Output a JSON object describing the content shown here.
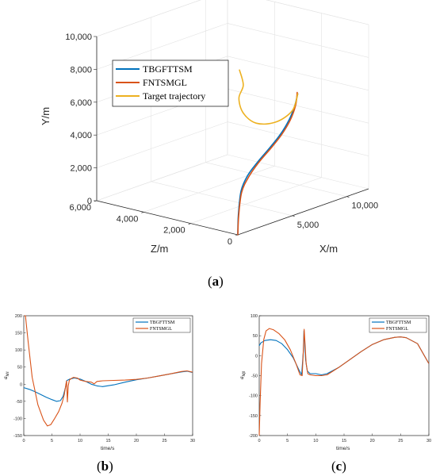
{
  "panels": {
    "a": {
      "label_open": "(",
      "letter": "a",
      "label_close": ")"
    },
    "b": {
      "label_open": "(",
      "letter": "b",
      "label_close": ")"
    },
    "c": {
      "label_open": "(",
      "letter": "c",
      "label_close": ")"
    }
  },
  "colors": {
    "tbgfttsm": "#0072BD",
    "fntsmgl": "#D95319",
    "target": "#EDB120"
  },
  "chart_data": [
    {
      "id": "a",
      "type": "line",
      "projection": "3d",
      "xlabel": "X/m",
      "ylabel": "Y/m",
      "zlabel": "Z/m",
      "xticks": [
        "5,000",
        "10,000"
      ],
      "xtick_values": [
        5000,
        10000
      ],
      "yticks": [
        "0",
        "2,000",
        "4,000",
        "6,000",
        "8,000",
        "10,000"
      ],
      "ytick_values": [
        0,
        2000,
        4000,
        6000,
        8000,
        10000
      ],
      "zticks": [
        "0",
        "2,000",
        "4,000",
        "6,000"
      ],
      "ztick_values": [
        0,
        2000,
        4000,
        6000
      ],
      "xlim": [
        0,
        12000
      ],
      "ylim": [
        0,
        10000
      ],
      "zlim": [
        0,
        6000
      ],
      "grid": true,
      "legend_position": "top-left",
      "series": [
        {
          "name": "TBGFTTSM",
          "color": "#0072BD",
          "x": [
            0,
            50,
            300,
            900,
            1800,
            2900,
            3900,
            4700,
            5200,
            5500
          ],
          "y": [
            0,
            1200,
            2600,
            3400,
            4000,
            4600,
            5200,
            5900,
            6600,
            7300
          ],
          "z": [
            0,
            0,
            0,
            0,
            0,
            0,
            0,
            0,
            0,
            0
          ]
        },
        {
          "name": "FNTSMGL",
          "color": "#D95319",
          "x": [
            0,
            80,
            350,
            1000,
            1900,
            3000,
            4000,
            4800,
            5300,
            5450
          ],
          "y": [
            0,
            1150,
            2500,
            3300,
            3950,
            4550,
            5150,
            5850,
            6650,
            7400
          ],
          "z": [
            0,
            0,
            0,
            0,
            0,
            0,
            0,
            0,
            0,
            0
          ]
        },
        {
          "name": "Target trajectory",
          "color": "#EDB120",
          "x": [
            5500,
            5000,
            3500,
            1700,
            500,
            100,
            500,
            150
          ],
          "y": [
            7300,
            6400,
            6050,
            6400,
            7300,
            8300,
            9000,
            10000
          ],
          "z": [
            0,
            0,
            0,
            0,
            0,
            0,
            0,
            0
          ]
        }
      ]
    },
    {
      "id": "b",
      "type": "line",
      "xlabel": "time/s",
      "ylabel": "a",
      "ylabel_sub": "Mℓ",
      "xlim": [
        0,
        30
      ],
      "ylim": [
        -150,
        200
      ],
      "xticks": [
        "0",
        "5",
        "10",
        "15",
        "20",
        "25",
        "30"
      ],
      "xtick_values": [
        0,
        5,
        10,
        15,
        20,
        25,
        30
      ],
      "yticks": [
        "200",
        "150",
        "100",
        "50",
        "0",
        "-50",
        "-100",
        "-150"
      ],
      "ytick_values": [
        200,
        150,
        100,
        50,
        0,
        -50,
        -100,
        -150
      ],
      "grid": false,
      "legend_position": "top-right",
      "series": [
        {
          "name": "TBGFTTSM",
          "color": "#0072BD",
          "x": [
            0,
            1,
            2,
            3,
            4,
            5,
            5.8,
            6.5,
            7,
            7.4,
            7.6,
            7.8,
            8.2,
            9,
            10,
            11,
            12,
            13,
            14,
            16,
            18,
            20,
            22,
            24,
            26,
            28,
            29,
            30
          ],
          "y": [
            -10,
            -15,
            -22,
            -30,
            -38,
            -45,
            -50,
            -48,
            -35,
            -10,
            10,
            12,
            15,
            18,
            15,
            8,
            0,
            -5,
            -7,
            -2,
            6,
            13,
            18,
            24,
            30,
            36,
            38,
            34
          ]
        },
        {
          "name": "FNTSMGL",
          "color": "#D95319",
          "x": [
            0.1,
            0.3,
            0.8,
            1.5,
            2.5,
            3.5,
            4.2,
            4.8,
            5.5,
            6.2,
            6.8,
            7.2,
            7.4,
            7.6,
            7.75,
            7.9,
            8.1,
            8.4,
            8.8,
            9.5,
            10,
            11,
            12,
            12.5,
            13,
            14,
            16,
            18,
            20,
            22,
            24,
            26,
            28,
            29,
            30
          ],
          "y": [
            200,
            200,
            120,
            20,
            -60,
            -105,
            -122,
            -118,
            -100,
            -80,
            -55,
            -30,
            -10,
            10,
            -52,
            -5,
            12,
            16,
            20,
            18,
            12,
            8,
            6,
            1,
            8,
            10,
            11,
            12,
            14,
            18,
            24,
            30,
            37,
            39,
            35
          ]
        }
      ]
    },
    {
      "id": "c",
      "type": "line",
      "xlabel": "time/s",
      "ylabel": "a",
      "ylabel_sub": "Mβ",
      "xlim": [
        0,
        30
      ],
      "ylim": [
        -200,
        100
      ],
      "xticks": [
        "0",
        "5",
        "10",
        "15",
        "20",
        "25",
        "30"
      ],
      "xtick_values": [
        0,
        5,
        10,
        15,
        20,
        25,
        30
      ],
      "yticks": [
        "100",
        "50",
        "0",
        "-50",
        "-100",
        "-150",
        "-200"
      ],
      "ytick_values": [
        100,
        50,
        0,
        -50,
        -100,
        -150,
        -200
      ],
      "grid": false,
      "legend_position": "top-right",
      "series": [
        {
          "name": "TBGFTTSM",
          "color": "#0072BD",
          "x": [
            0,
            0.3,
            1,
            2,
            3,
            4,
            5,
            6,
            7,
            7.5,
            7.8,
            7.9,
            8.0,
            8.2,
            8.5,
            9,
            10,
            11,
            12,
            14,
            16,
            18,
            20,
            22,
            24,
            25,
            26,
            28,
            30
          ],
          "y": [
            25,
            32,
            38,
            40,
            38,
            30,
            15,
            -5,
            -35,
            -48,
            10,
            62,
            40,
            -10,
            -38,
            -45,
            -45,
            -48,
            -45,
            -30,
            -10,
            10,
            28,
            40,
            46,
            47,
            45,
            30,
            -20
          ]
        },
        {
          "name": "FNTSMGL",
          "color": "#D95319",
          "x": [
            0,
            0.15,
            0.4,
            0.8,
            1.2,
            1.8,
            2.5,
            3.5,
            4.5,
            5.5,
            6.5,
            7.2,
            7.6,
            7.8,
            7.95,
            8.1,
            8.3,
            8.6,
            9,
            10,
            11,
            12,
            14,
            16,
            18,
            20,
            22,
            24,
            25,
            26,
            28,
            30
          ],
          "y": [
            -200,
            -120,
            -20,
            40,
            62,
            68,
            65,
            55,
            40,
            15,
            -20,
            -48,
            -50,
            10,
            66,
            30,
            -20,
            -45,
            -48,
            -50,
            -50,
            -48,
            -30,
            -10,
            10,
            28,
            40,
            46,
            47,
            45,
            30,
            -20
          ]
        }
      ]
    }
  ]
}
